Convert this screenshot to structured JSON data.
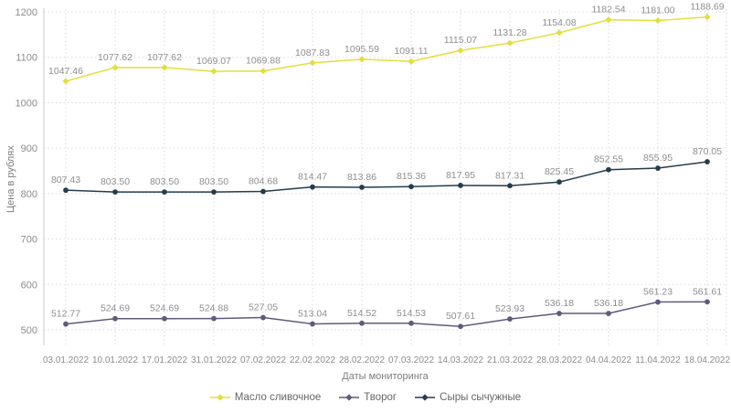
{
  "chart_data": {
    "type": "line",
    "title": "",
    "xlabel": "Даты мониторинга",
    "ylabel": "Цена в рублях",
    "ylim": [
      500,
      1200
    ],
    "yticks": [
      500,
      600,
      700,
      800,
      900,
      1000,
      1100,
      1200
    ],
    "grid": true,
    "legend_position": "bottom",
    "background_color": "#ffffff",
    "grid_color": "#d9d9d9",
    "axis_line_color": "#c9c9c9",
    "tick_text_color": "#8c8c8c",
    "data_label_color": "#8e8e8e",
    "categories": [
      "03.01.2022",
      "10.01.2022",
      "17.01.2022",
      "31.01.2022",
      "07.02.2022",
      "22.02.2022",
      "28.02.2022",
      "07.03.2022",
      "14.03.2022",
      "21.03.2022",
      "28.03.2022",
      "04.04.2022",
      "11.04.2022",
      "18.04.2022"
    ],
    "series": [
      {
        "name": "Масло сливочное",
        "color": "#e3de3d",
        "marker": "diamond",
        "values": [
          1047.46,
          1077.62,
          1077.62,
          1069.07,
          1069.88,
          1087.83,
          1095.59,
          1091.11,
          1115.07,
          1131.28,
          1154.08,
          1182.54,
          1181.0,
          1188.69
        ]
      },
      {
        "name": "Творог",
        "color": "#615a7c",
        "marker": "circle",
        "values": [
          512.77,
          524.69,
          524.69,
          524.88,
          527.05,
          513.04,
          514.52,
          514.53,
          507.61,
          523.93,
          536.18,
          536.18,
          561.23,
          561.61
        ]
      },
      {
        "name": "Сыры сычужные",
        "color": "#263c4b",
        "marker": "circle",
        "values": [
          807.43,
          803.5,
          803.5,
          803.5,
          804.68,
          814.47,
          813.86,
          815.36,
          817.95,
          817.31,
          825.45,
          852.55,
          855.95,
          870.05
        ]
      }
    ]
  }
}
